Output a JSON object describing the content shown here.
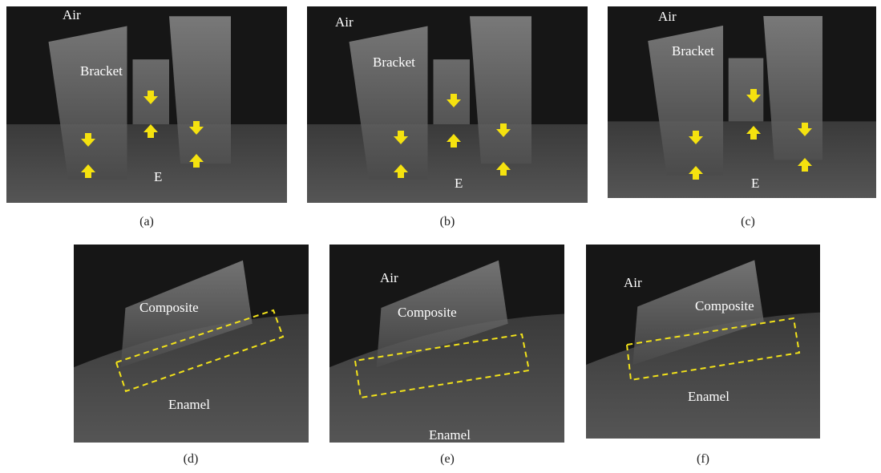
{
  "panels": [
    {
      "caption": "(a)",
      "labels": [
        "Air",
        "Bracket",
        "E"
      ]
    },
    {
      "caption": "(b)",
      "labels": [
        "Air",
        "Bracket",
        "E"
      ]
    },
    {
      "caption": "(c)",
      "labels": [
        "Air",
        "Bracket",
        "E"
      ]
    },
    {
      "caption": "(d)",
      "labels": [
        "Composite",
        "Enamel"
      ]
    },
    {
      "caption": "(e)",
      "labels": [
        "Air",
        "Composite",
        "Enamel"
      ]
    },
    {
      "caption": "(f)",
      "labels": [
        "Air",
        "Composite",
        "Enamel"
      ]
    }
  ]
}
